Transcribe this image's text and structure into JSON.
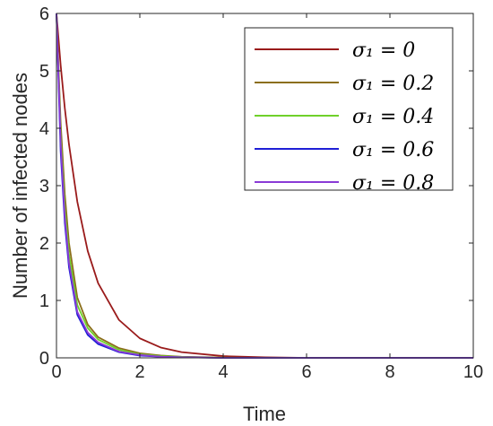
{
  "chart_data": {
    "type": "line",
    "title": "",
    "xlabel": "Time",
    "ylabel": "Number of infected nodes",
    "xlim": [
      0,
      10
    ],
    "ylim": [
      0,
      6
    ],
    "xticks": [
      "0",
      "2",
      "4",
      "6",
      "8",
      "10"
    ],
    "yticks": [
      "0",
      "1",
      "2",
      "3",
      "4",
      "5",
      "6"
    ],
    "grid": false,
    "legend_position": "top-right",
    "x": [
      0,
      0.1,
      0.2,
      0.3,
      0.5,
      0.75,
      1,
      1.5,
      2,
      2.5,
      3,
      4,
      5,
      6,
      8,
      10
    ],
    "series": [
      {
        "name": "σ₁ = 0",
        "color": "#9a1b1b",
        "values": [
          6,
          5.1,
          4.35,
          3.72,
          2.72,
          1.86,
          1.3,
          0.66,
          0.34,
          0.18,
          0.1,
          0.03,
          0.01,
          0,
          0,
          0
        ]
      },
      {
        "name": "σ₁ = 0.2",
        "color": "#8b6e1a",
        "values": [
          6,
          4.1,
          2.85,
          2.0,
          1.05,
          0.58,
          0.36,
          0.17,
          0.08,
          0.04,
          0.02,
          0.005,
          0,
          0,
          0,
          0
        ]
      },
      {
        "name": "σ₁ = 0.4",
        "color": "#6fd12a",
        "values": [
          6,
          3.85,
          2.6,
          1.8,
          0.92,
          0.52,
          0.32,
          0.14,
          0.06,
          0.03,
          0.015,
          0,
          0,
          0,
          0,
          0
        ]
      },
      {
        "name": "σ₁ = 0.6",
        "color": "#1f1fd6",
        "values": [
          6,
          3.6,
          2.35,
          1.58,
          0.75,
          0.4,
          0.24,
          0.1,
          0.04,
          0.02,
          0.01,
          0,
          0,
          0,
          0,
          0
        ]
      },
      {
        "name": "σ₁ = 0.8",
        "color": "#8a3ad6",
        "values": [
          6,
          3.75,
          2.45,
          1.66,
          0.8,
          0.44,
          0.27,
          0.11,
          0.05,
          0.02,
          0.01,
          0,
          0,
          0,
          0,
          0
        ]
      }
    ]
  }
}
